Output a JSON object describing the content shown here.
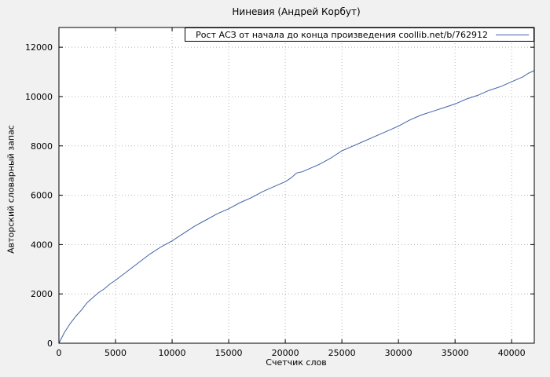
{
  "page": {
    "title": "Ниневия (Андрей Корбут)"
  },
  "chart_data": {
    "type": "line",
    "title": "Ниневия (Андрей Корбут)",
    "legend": "Рост АСЗ от начала до конца произведения coollib.net/b/762912",
    "legend_position": "top-right-inside",
    "xlabel": "Счетчик слов",
    "ylabel": "Авторский словарный запас",
    "xlim": [
      0,
      42000
    ],
    "ylim": [
      0,
      12800
    ],
    "xticks": [
      0,
      5000,
      10000,
      15000,
      20000,
      25000,
      30000,
      35000,
      40000
    ],
    "yticks": [
      0,
      2000,
      4000,
      6000,
      8000,
      10000,
      12000
    ],
    "grid": true,
    "colors": {
      "line": "#3f62ae",
      "plot_background": "#ffffff",
      "page_background": "#f1f1f1",
      "grid": "#b5b5b5",
      "border": "#000000"
    },
    "series": [
      {
        "name": "Рост АСЗ",
        "points": [
          [
            0,
            0
          ],
          [
            500,
            450
          ],
          [
            1000,
            800
          ],
          [
            1500,
            1100
          ],
          [
            2000,
            1350
          ],
          [
            2500,
            1650
          ],
          [
            3000,
            1850
          ],
          [
            3500,
            2050
          ],
          [
            4000,
            2200
          ],
          [
            4500,
            2400
          ],
          [
            5000,
            2550
          ],
          [
            6000,
            2900
          ],
          [
            7000,
            3250
          ],
          [
            8000,
            3600
          ],
          [
            9000,
            3900
          ],
          [
            10000,
            4150
          ],
          [
            11000,
            4450
          ],
          [
            12000,
            4750
          ],
          [
            13000,
            5000
          ],
          [
            14000,
            5250
          ],
          [
            15000,
            5450
          ],
          [
            16000,
            5700
          ],
          [
            17000,
            5900
          ],
          [
            18000,
            6150
          ],
          [
            19000,
            6350
          ],
          [
            20000,
            6550
          ],
          [
            20500,
            6700
          ],
          [
            21000,
            6900
          ],
          [
            21500,
            6950
          ],
          [
            22000,
            7050
          ],
          [
            23000,
            7250
          ],
          [
            24000,
            7500
          ],
          [
            25000,
            7800
          ],
          [
            26000,
            8000
          ],
          [
            27000,
            8200
          ],
          [
            28000,
            8400
          ],
          [
            29000,
            8600
          ],
          [
            30000,
            8800
          ],
          [
            31000,
            9050
          ],
          [
            32000,
            9250
          ],
          [
            33000,
            9400
          ],
          [
            34000,
            9550
          ],
          [
            35000,
            9700
          ],
          [
            36000,
            9900
          ],
          [
            37000,
            10050
          ],
          [
            38000,
            10250
          ],
          [
            39000,
            10400
          ],
          [
            40000,
            10600
          ],
          [
            41000,
            10800
          ],
          [
            41500,
            10950
          ],
          [
            42000,
            11050
          ]
        ]
      }
    ]
  }
}
